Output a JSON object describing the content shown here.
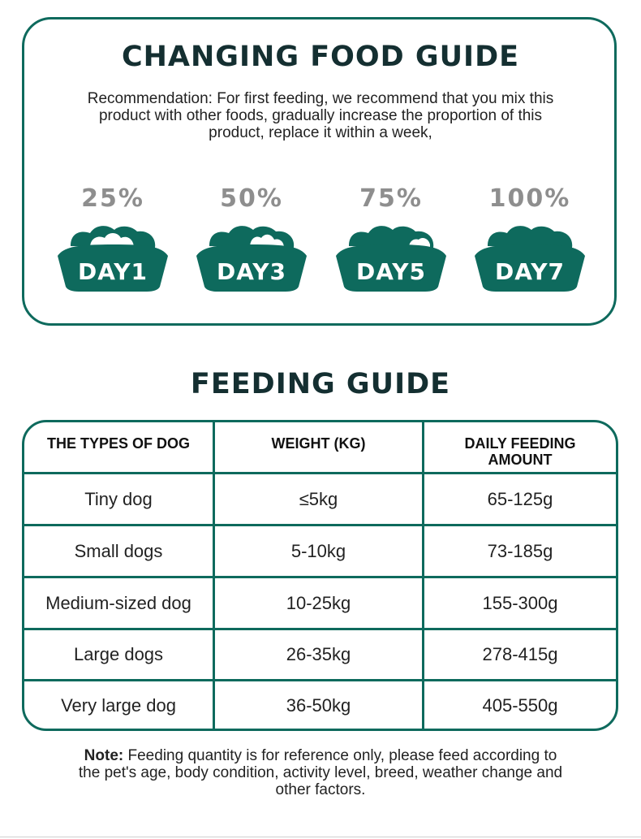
{
  "changing_guide": {
    "title": "CHANGING FOOD GUIDE",
    "recommendation": "Recommendation: For first feeding, we recommend that you mix this product with other foods, gradually increase the proportion of this product, replace it within a week,",
    "steps": [
      {
        "percent": "25%",
        "day": "DAY1",
        "proportion": 0.25
      },
      {
        "percent": "50%",
        "day": "DAY3",
        "proportion": 0.5
      },
      {
        "percent": "75%",
        "day": "DAY5",
        "proportion": 0.75
      },
      {
        "percent": "100%",
        "day": "DAY7",
        "proportion": 1.0
      }
    ]
  },
  "feeding_guide": {
    "title": "FEEDING GUIDE",
    "headers": [
      "THE TYPES OF DOG",
      "WEIGHT (KG)",
      "DAILY FEEDING AMOUNT"
    ],
    "rows": [
      [
        "Tiny dog",
        "≤5kg",
        "65-125g"
      ],
      [
        "Small dogs",
        "5-10kg",
        "73-185g"
      ],
      [
        "Medium-sized dog",
        "10-25kg",
        "155-300g"
      ],
      [
        "Large dogs",
        "26-35kg",
        "278-415g"
      ],
      [
        "Very large dog",
        "36-50kg",
        "405-550g"
      ]
    ]
  },
  "note": {
    "label": "Note:",
    "text": " Feeding quantity is for reference only, please feed according to the pet's age, body condition, activity level, breed, weather change and other factors."
  },
  "colors": {
    "accent": "#0e6a5d",
    "title": "#142f31",
    "percent": "#8e8e8e"
  }
}
